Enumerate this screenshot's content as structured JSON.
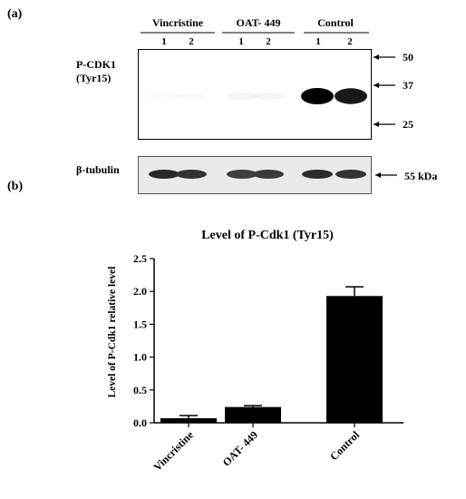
{
  "panels": {
    "a": "(a)",
    "b": "(b)"
  },
  "blot_top": {
    "groups": [
      {
        "name": "Vincristine",
        "lanes": [
          "1",
          "2"
        ]
      },
      {
        "name": "OAT- 449",
        "lanes": [
          "1",
          "2"
        ]
      },
      {
        "name": "Control",
        "lanes": [
          "1",
          "2"
        ]
      }
    ],
    "label_line1": "P-CDK1",
    "label_line2": "(Tyr15)",
    "markers": [
      "50",
      "37",
      "25"
    ],
    "band_intensity": [
      0.05,
      0.1,
      0.15,
      0.15,
      1.0,
      0.95
    ]
  },
  "blot_bottom": {
    "label": "β-tubulin",
    "marker": "55 kDa",
    "band_intensity": [
      0.9,
      0.85,
      0.8,
      0.82,
      0.88,
      0.85
    ]
  },
  "chart_data": {
    "type": "bar",
    "title": "Level of P-Cdk1 (Tyr15)",
    "ylabel": "Level of P-Cdk1 relative level",
    "xlabel": "",
    "categories": [
      "Vincristine",
      "OAT- 449",
      "Control"
    ],
    "values": [
      0.07,
      0.24,
      1.93
    ],
    "errors": [
      0.04,
      0.02,
      0.14
    ],
    "ylim": [
      0,
      2.5
    ],
    "yticks": [
      "0.0",
      "0.5",
      "1.0",
      "1.5",
      "2.0",
      "2.5"
    ],
    "bar_color": "#000000",
    "grid": false
  }
}
